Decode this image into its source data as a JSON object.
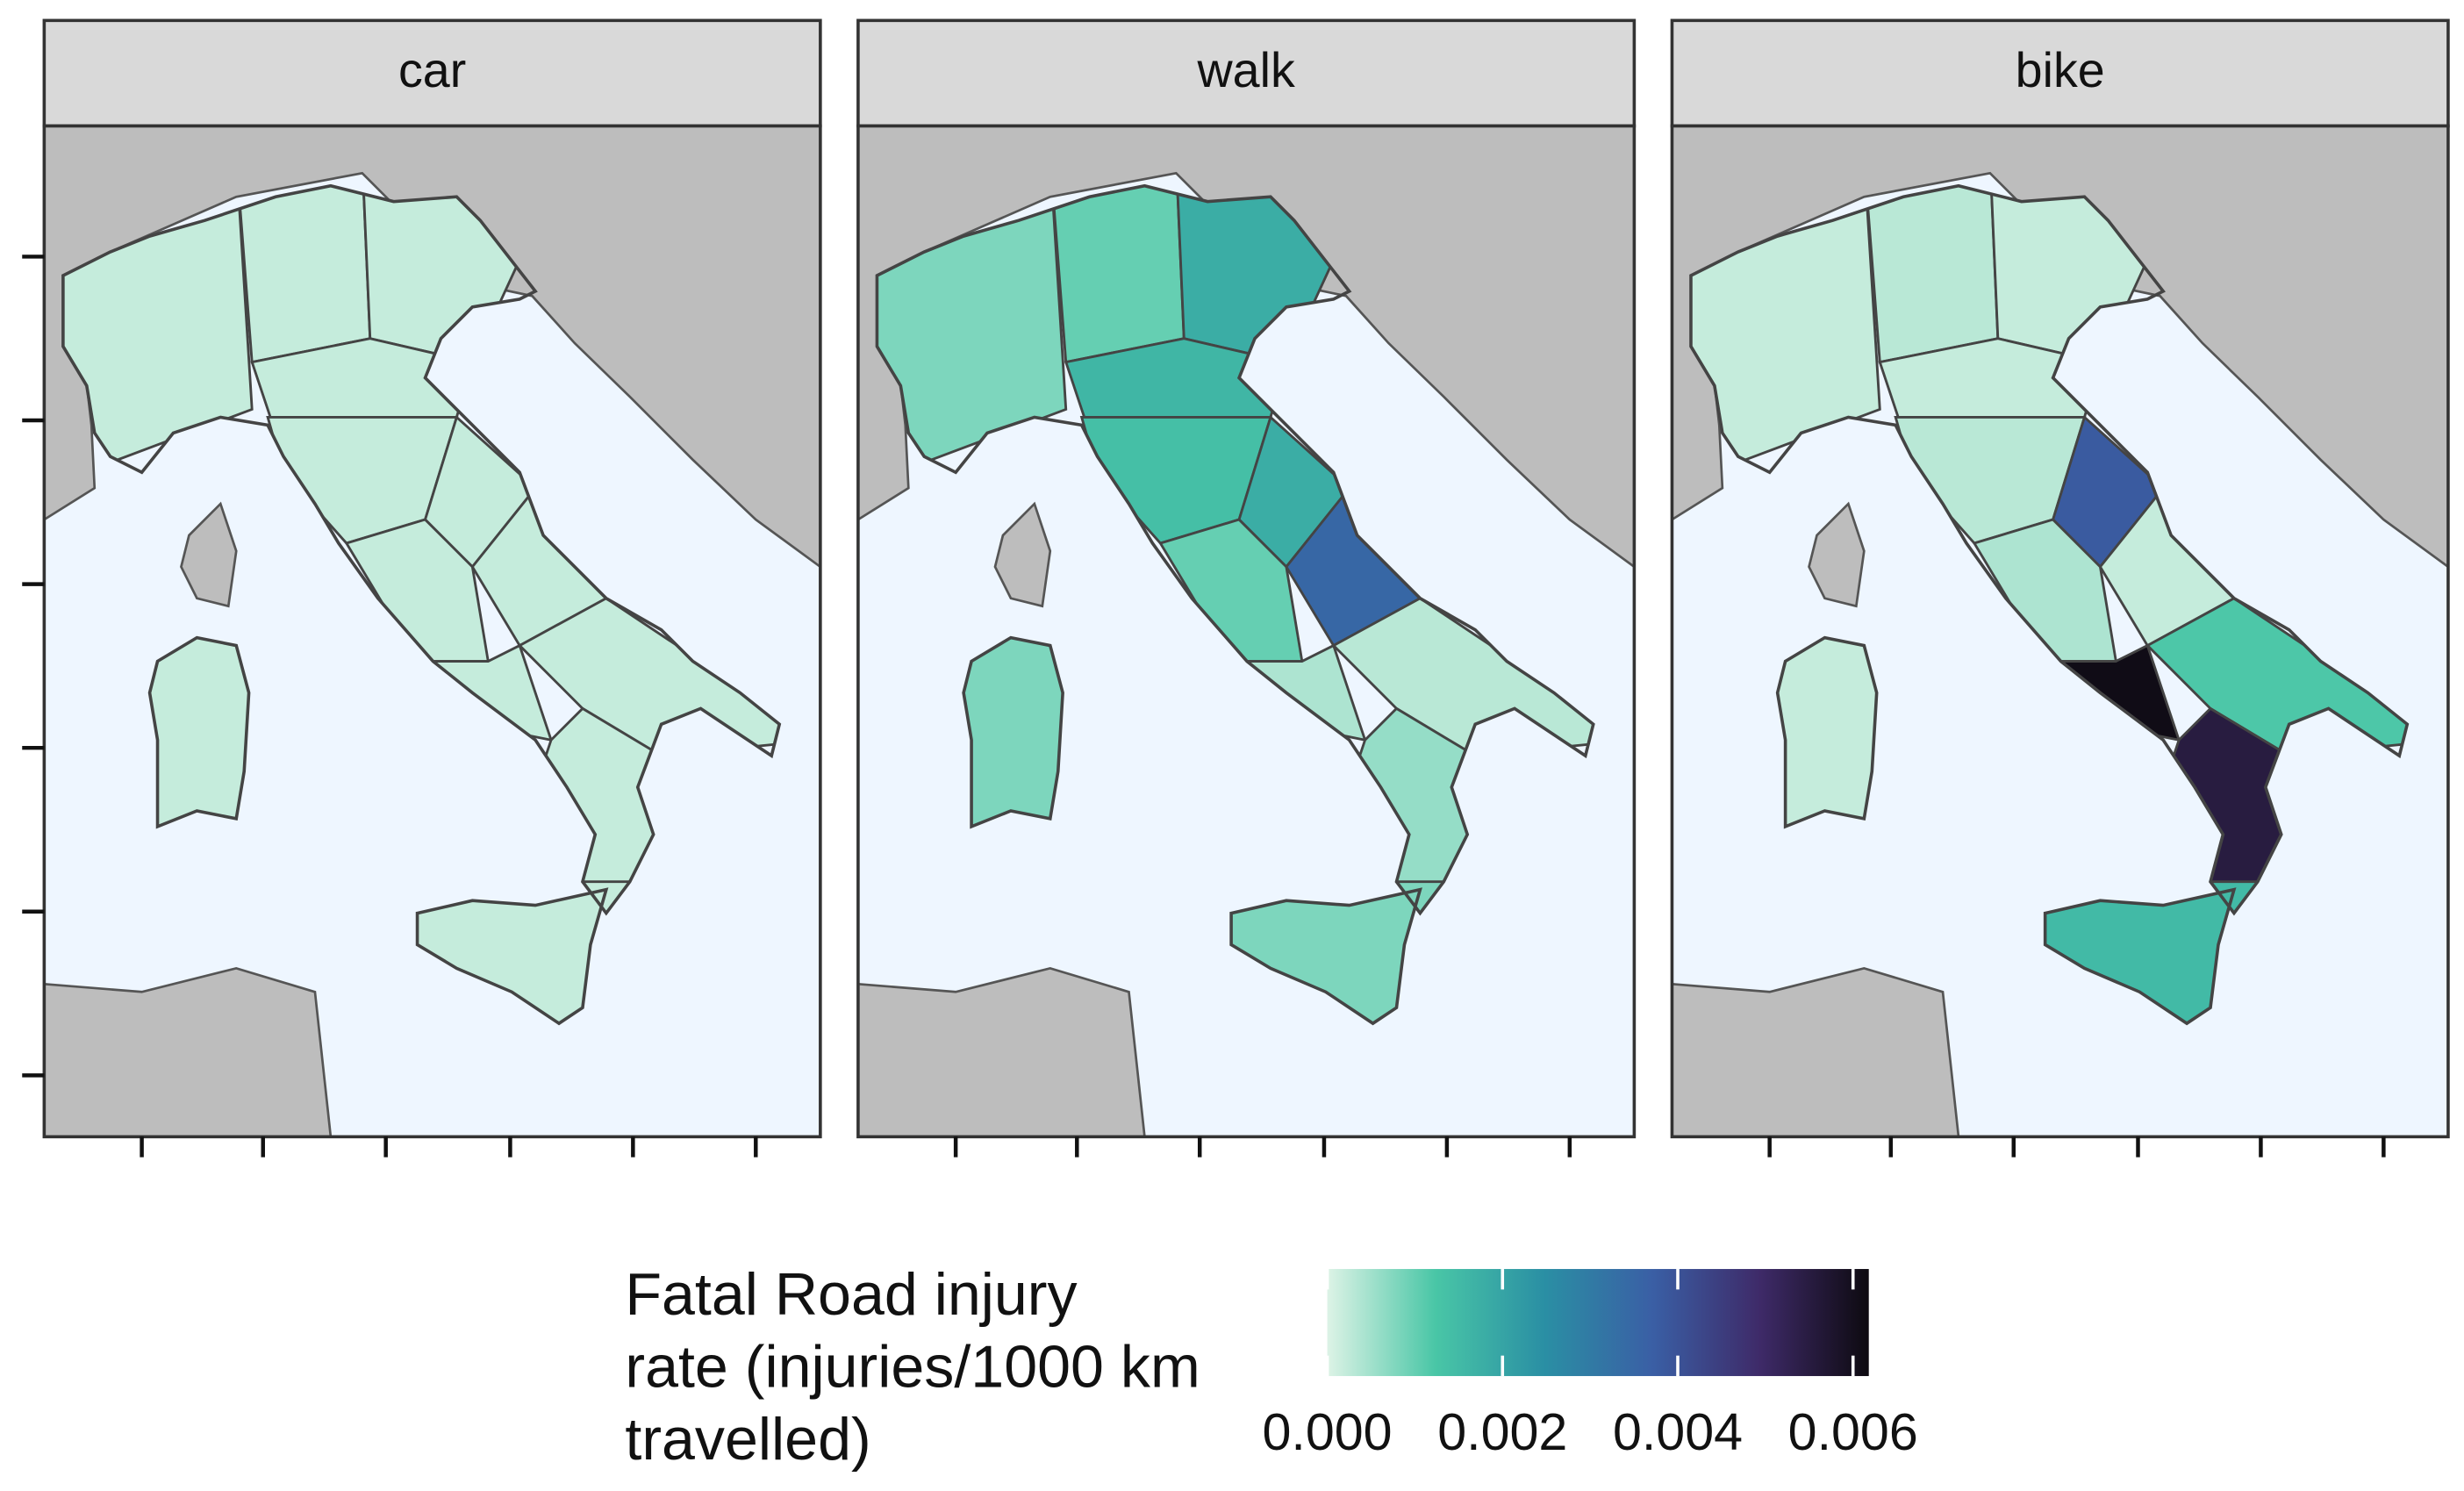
{
  "chart_data": {
    "type": "choropleth",
    "facets": [
      {
        "label": "car",
        "values": [
          0.0002,
          0.0002,
          0.0002,
          0.0002,
          0.0002,
          0.0002,
          0.0002,
          0.0002,
          0.0002,
          0.0002,
          0.0002,
          0.0002,
          0.0002
        ]
      },
      {
        "label": "walk",
        "values": [
          0.0008,
          0.001,
          0.0018,
          0.0016,
          0.0014,
          0.0018,
          0.001,
          0.0035,
          0.0004,
          0.0003,
          0.0006,
          0.0008,
          0.0008
        ]
      },
      {
        "label": "bike",
        "values": [
          0.0002,
          0.0003,
          0.0002,
          0.0002,
          0.0003,
          0.0038,
          0.0004,
          0.0002,
          0.0061,
          0.0012,
          0.0055,
          0.0015,
          0.0002
        ]
      }
    ],
    "legend_title": [
      "Fatal Road injury",
      "rate (injuries/1000 km",
      "travelled)"
    ],
    "colorbar": {
      "lim": [
        0,
        0.00618
      ],
      "ticks": [
        {
          "value": 0,
          "label": "0.000"
        },
        {
          "value": 0.002,
          "label": "0.002"
        },
        {
          "value": 0.004,
          "label": "0.004"
        },
        {
          "value": 0.006,
          "label": "0.006"
        }
      ],
      "colors": [
        "#ddf3e6",
        "#49c6a6",
        "#2a8fa4",
        "#3a5fa5",
        "#3e2a68",
        "#0d0a10"
      ]
    }
  }
}
